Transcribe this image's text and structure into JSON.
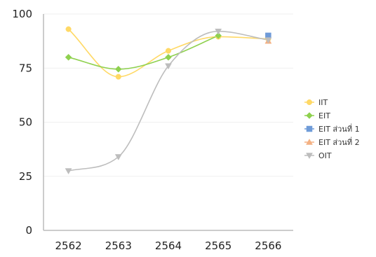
{
  "chart_data": {
    "type": "line",
    "title": "",
    "xlabel": "",
    "ylabel": "",
    "categories": [
      "2562",
      "2563",
      "2564",
      "2565",
      "2566"
    ],
    "ylim": [
      0,
      100
    ],
    "yticks": [
      0,
      25,
      50,
      75,
      100
    ],
    "grid": true,
    "smooth": true,
    "legend_position": "right",
    "series": [
      {
        "name": "IIT",
        "color": "#ffd966",
        "marker": "circle",
        "values": [
          93,
          71,
          83,
          89.5,
          88.5
        ]
      },
      {
        "name": "EIT",
        "color": "#8fd14f",
        "marker": "diamond",
        "values": [
          80,
          74.5,
          80,
          90,
          null
        ]
      },
      {
        "name": "EIT ส่วนที่ 1",
        "color": "#6f9bd8",
        "marker": "square",
        "values": [
          null,
          null,
          null,
          null,
          90
        ]
      },
      {
        "name": "EIT ส่วนที่ 2",
        "color": "#f4b183",
        "marker": "triangle-up",
        "values": [
          null,
          null,
          null,
          null,
          87.5
        ]
      },
      {
        "name": "OIT",
        "color": "#bdbdbd",
        "marker": "triangle-down",
        "values": [
          27.5,
          34,
          76,
          92,
          88
        ]
      }
    ]
  }
}
